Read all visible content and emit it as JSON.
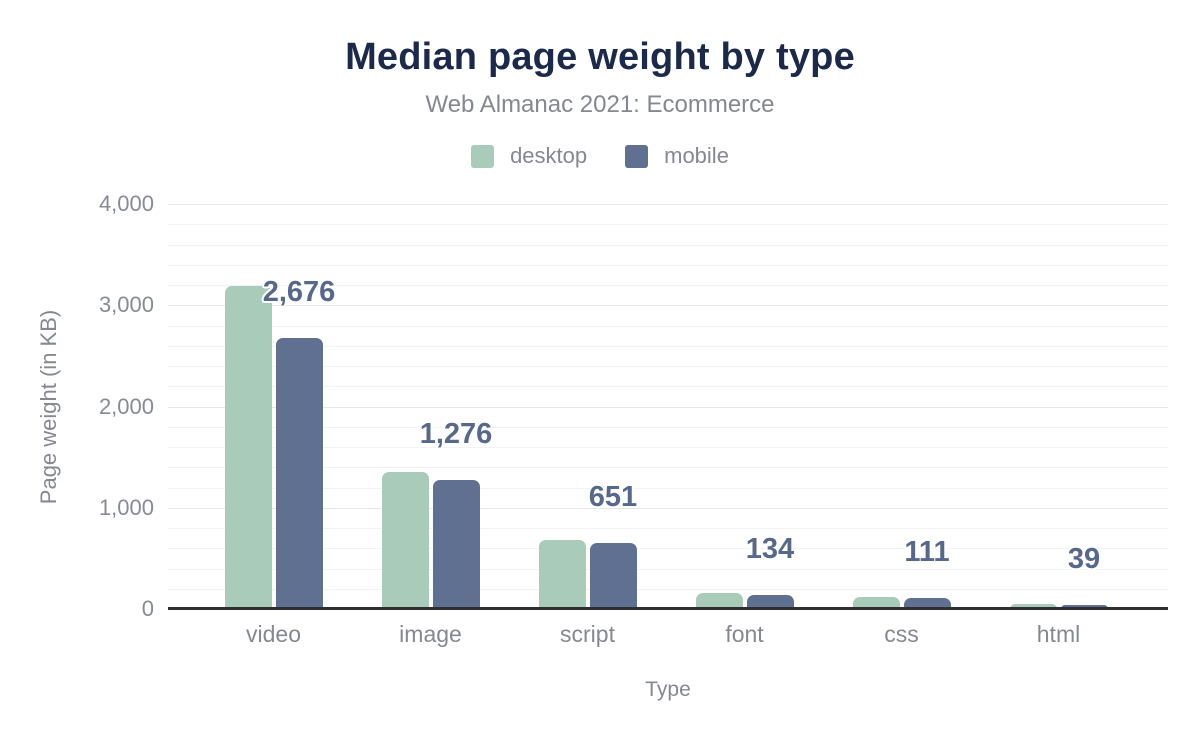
{
  "header": {
    "title": "Median page weight by type",
    "subtitle": "Web Almanac 2021: Ecommerce"
  },
  "legend": [
    {
      "label": "desktop",
      "color": "#a9cbb9"
    },
    {
      "label": "mobile",
      "color": "#5f7090"
    }
  ],
  "chart_data": {
    "type": "bar",
    "title": "Median page weight by type",
    "subtitle": "Web Almanac 2021: Ecommerce",
    "categories": [
      "video",
      "image",
      "script",
      "font",
      "css",
      "html"
    ],
    "series": [
      {
        "name": "desktop",
        "color": "#a9cbb9",
        "values": [
          3190,
          1350,
          680,
          160,
          115,
          45
        ]
      },
      {
        "name": "mobile",
        "color": "#5f7090",
        "values": [
          2676,
          1276,
          651,
          134,
          111,
          39
        ]
      }
    ],
    "data_labels": {
      "on_series": "mobile",
      "values": [
        "2,676",
        "1,276",
        "651",
        "134",
        "111",
        "39"
      ]
    },
    "xlabel": "Type",
    "ylabel": "Page weight (in KB)",
    "ylim": [
      0,
      4000
    ],
    "y_major_step": 1000,
    "y_minor_step": 200,
    "y_tick_labels": [
      "0",
      "1,000",
      "2,000",
      "3,000",
      "4,000"
    ],
    "grid": true,
    "legend_position": "top"
  },
  "colors": {
    "title": "#1b2a4a",
    "muted_text": "#85898f",
    "tick_text": "#878b93",
    "value_label": "#56688b",
    "axis_line": "#2e2f31",
    "grid_major": "#e4e6e8",
    "grid_minor": "#f2f3f4",
    "background": "#ffffff"
  }
}
